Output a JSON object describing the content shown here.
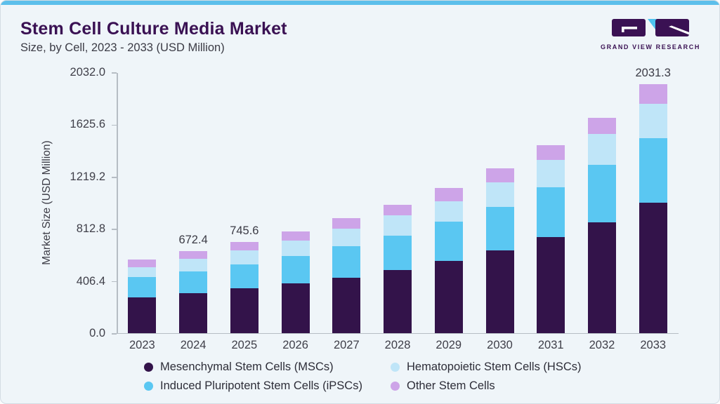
{
  "header": {
    "title": "Stem Cell Culture Media Market",
    "subtitle": "Size, by Cell, 2023 - 2033 (USD Million)",
    "logo_text": "GRAND VIEW RESEARCH"
  },
  "colors": {
    "card_background": "#eff5f9",
    "top_accent": "#5cbfeb",
    "title_purple": "#3a1153",
    "axis_line": "#b6bdc4",
    "text_dark": "#3b3b45",
    "legend_text": "#2d2d38",
    "logo_purple": "#3a1153",
    "logo_cyan": "#4ec3f0"
  },
  "chart_data": {
    "type": "bar",
    "stacked": true,
    "title": "Stem Cell Culture Media Market Size, by Cell, 2023 - 2033 (USD Million)",
    "categories": [
      "2023",
      "2024",
      "2025",
      "2026",
      "2027",
      "2028",
      "2029",
      "2030",
      "2031",
      "2032",
      "2033"
    ],
    "series": [
      {
        "key": "msc",
        "name": "Mesenchymal Stem Cells (MSCs)",
        "color": "#33134a",
        "values": [
          294.3,
          327.0,
          364.4,
          404.0,
          454.1,
          515.3,
          586.8,
          673.4,
          784.7,
          904.2,
          1063.6
        ]
      },
      {
        "key": "ipsc",
        "name": "Induced Pluripotent Stem Cells (iPSCs)",
        "color": "#5ac7f2",
        "values": [
          163.3,
          178.7,
          197.6,
          226.8,
          253.9,
          282.7,
          323.1,
          355.4,
          403.9,
          467.4,
          529.2
        ]
      },
      {
        "key": "hsc",
        "name": "Hematopoietic Stem Cells (HSCs)",
        "color": "#bfe5f8",
        "values": [
          83.1,
          101.2,
          116.2,
          125.2,
          144.3,
          163.9,
          169.1,
          204.3,
          225.0,
          255.6,
          278.7
        ]
      },
      {
        "key": "other",
        "name": "Other Stem Cells",
        "color": "#cda4e8",
        "values": [
          61.2,
          65.5,
          67.4,
          76.7,
          86.6,
          86.6,
          103.9,
          113.1,
          121.2,
          132.7,
          159.8
        ]
      }
    ],
    "stack_order_bottom_to_top": [
      "msc",
      "ipsc",
      "hsc",
      "other"
    ],
    "totals": [
      601.9,
      672.4,
      745.6,
      832.7,
      938.9,
      1048.5,
      1182.9,
      1346.2,
      1534.8,
      1759.9,
      2031.3
    ],
    "total_labels": {
      "2024": "672.4",
      "2025": "745.6",
      "2033": "2031.3"
    },
    "ylabel": "Market Size (USD Million)",
    "yticks": [
      0.0,
      406.4,
      812.8,
      1219.2,
      1625.6,
      2032.0
    ],
    "ytick_labels": [
      "0.0",
      "406.4",
      "812.8",
      "1219.2",
      "1625.6",
      "2032.0"
    ],
    "ylim": [
      0,
      2032
    ],
    "grid": false,
    "legend_position": "bottom"
  },
  "legend": {
    "items": [
      {
        "label": "Mesenchymal Stem Cells (MSCs)",
        "color": "#33134a"
      },
      {
        "label": "Hematopoietic Stem Cells (HSCs)",
        "color": "#bfe5f8"
      },
      {
        "label": "Induced Pluripotent Stem Cells (iPSCs)",
        "color": "#5ac7f2"
      },
      {
        "label": "Other Stem Cells",
        "color": "#cda4e8"
      }
    ]
  }
}
